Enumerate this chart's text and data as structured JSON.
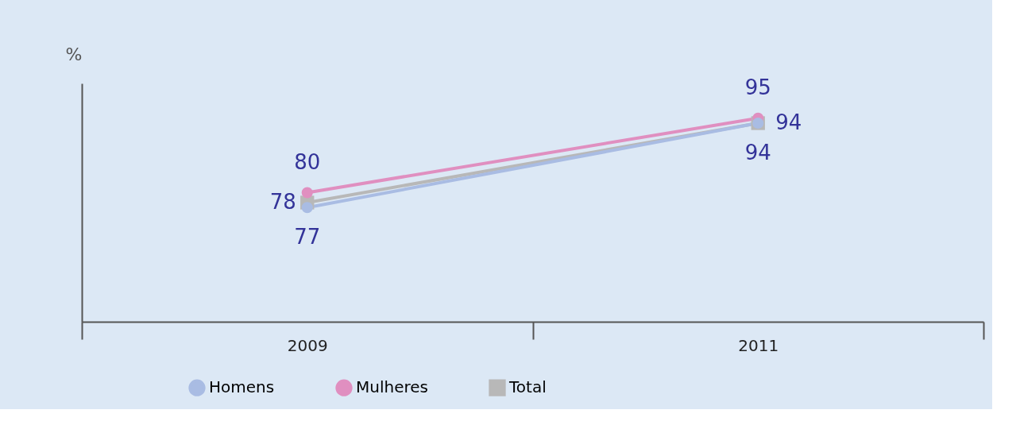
{
  "chart_data": {
    "type": "line",
    "ylabel": "%",
    "categories": [
      "2009",
      "2011"
    ],
    "series": [
      {
        "name": "Homens",
        "color": "#a9bce3",
        "marker": "circle",
        "values": [
          77,
          94
        ]
      },
      {
        "name": "Mulheres",
        "color": "#e08fc0",
        "marker": "circle",
        "values": [
          80,
          95
        ]
      },
      {
        "name": "Total",
        "color": "#b8b8b8",
        "marker": "square",
        "values": [
          78,
          94
        ]
      }
    ],
    "ylim": [
      54,
      102
    ],
    "data_labels": true,
    "legend": "bottom",
    "grid": false,
    "line_style": "solid"
  }
}
